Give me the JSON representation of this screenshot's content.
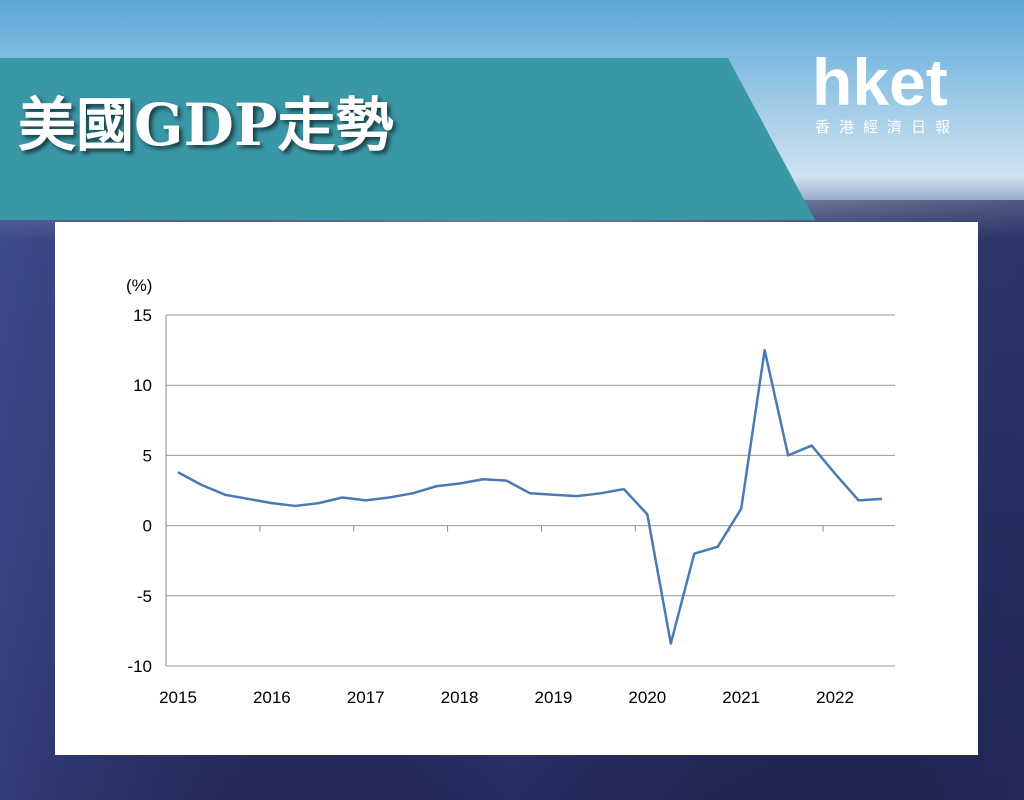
{
  "header": {
    "title": "美國GDP走勢",
    "logo": "hket",
    "logo_subtitle": "香港經濟日報"
  },
  "chart_data": {
    "type": "line",
    "y_label": "(%)",
    "categories": [
      "2015",
      null,
      null,
      null,
      "2016",
      null,
      null,
      null,
      "2017",
      null,
      null,
      null,
      "2018",
      null,
      null,
      null,
      "2019",
      null,
      null,
      null,
      "2020",
      null,
      null,
      null,
      "2021",
      null,
      null,
      null,
      "2022",
      null,
      null
    ],
    "series": [
      {
        "name": "GDP",
        "color": "#4a7ab5",
        "values": [
          3.8,
          2.9,
          2.2,
          1.9,
          1.6,
          1.4,
          1.6,
          2.0,
          1.8,
          2.0,
          2.3,
          2.8,
          3.0,
          3.3,
          3.2,
          2.3,
          2.2,
          2.1,
          2.3,
          2.6,
          0.8,
          -8.4,
          -2.0,
          -1.5,
          1.2,
          12.5,
          5.0,
          5.7,
          3.7,
          1.8,
          1.9
        ]
      }
    ],
    "ylim": [
      -10,
      15
    ],
    "yticks": [
      15,
      10,
      5,
      0,
      -5,
      -10
    ],
    "grid": true
  }
}
